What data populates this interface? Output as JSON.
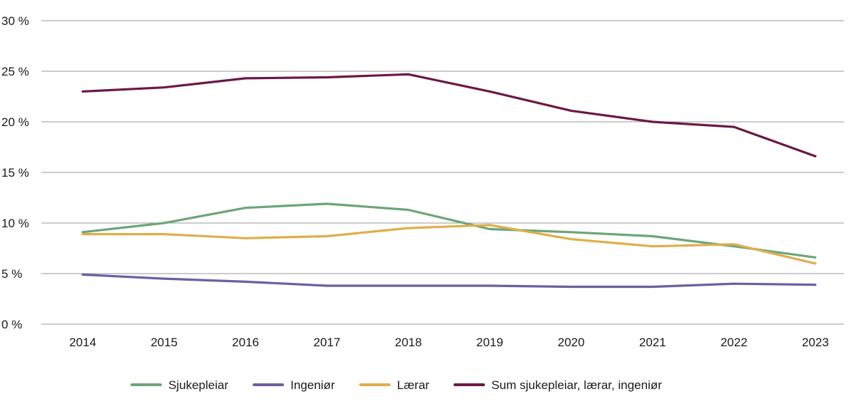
{
  "chart_data": {
    "type": "line",
    "title": "",
    "xlabel": "",
    "ylabel": "",
    "categories": [
      "2014",
      "2015",
      "2016",
      "2017",
      "2018",
      "2019",
      "2020",
      "2021",
      "2022",
      "2023"
    ],
    "ylim": [
      0,
      30
    ],
    "yticks": [
      0,
      5,
      10,
      15,
      20,
      25,
      30
    ],
    "ytick_labels": [
      "0 %",
      "5 %",
      "10 %",
      "15 %",
      "20 %",
      "25 %",
      "30 %"
    ],
    "grid": true,
    "legend_position": "bottom",
    "series": [
      {
        "name": "Sjukepleiar",
        "color": "#6aa679",
        "values": [
          9.1,
          10.0,
          11.5,
          11.9,
          11.3,
          9.4,
          9.1,
          8.7,
          7.7,
          6.6
        ]
      },
      {
        "name": "Ingeniør",
        "color": "#6e5f9e",
        "values": [
          4.9,
          4.5,
          4.2,
          3.8,
          3.8,
          3.8,
          3.7,
          3.7,
          4.0,
          3.9
        ]
      },
      {
        "name": "Lærar",
        "color": "#deae4a",
        "values": [
          8.9,
          8.9,
          8.5,
          8.7,
          9.5,
          9.8,
          8.4,
          7.7,
          7.9,
          6.0
        ]
      },
      {
        "name": "Sum sjukepleiar, lærar, ingeniør",
        "color": "#6b1848",
        "values": [
          23.0,
          23.4,
          24.3,
          24.4,
          24.7,
          23.0,
          21.1,
          20.0,
          19.5,
          16.6
        ]
      }
    ]
  }
}
